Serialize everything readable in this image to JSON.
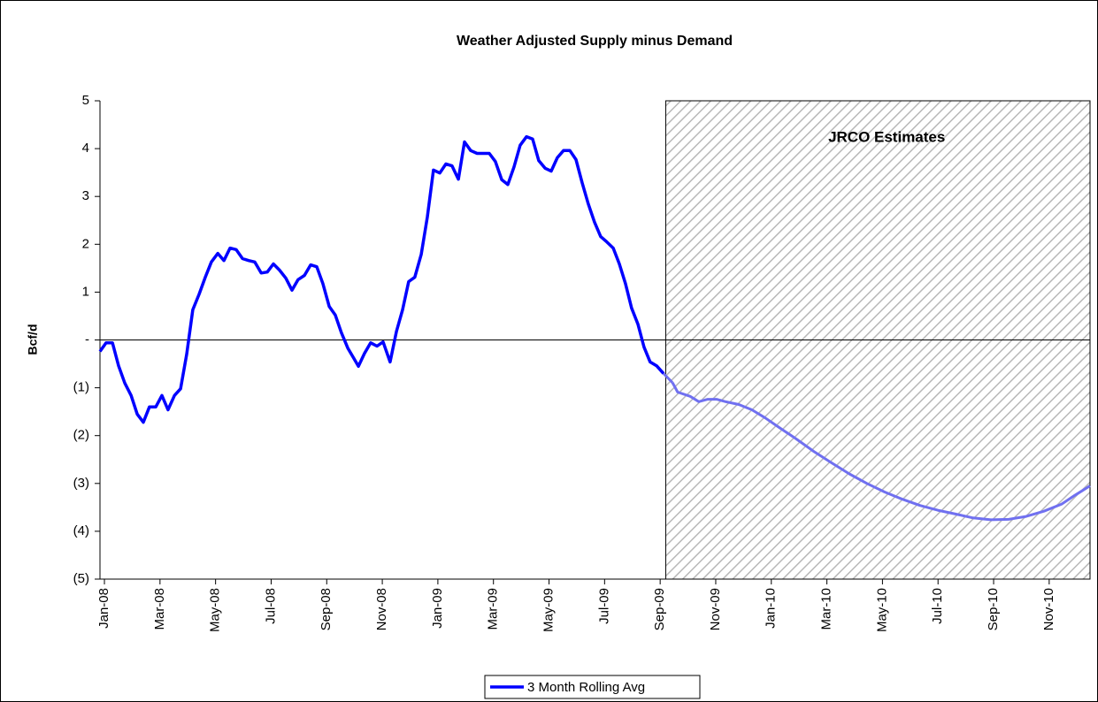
{
  "chart_data": {
    "type": "line",
    "title": "Weather Adjusted Supply minus Demand",
    "ylabel": "Bcf/d",
    "annotation": "JRCO Estimates",
    "estimate_from": 20.2,
    "estimate_color": "#7070f0",
    "shade_color": "#b8b8b8",
    "legend": "bottom",
    "x": [
      -0.16,
      0.06,
      0.29,
      0.51,
      0.73,
      0.96,
      1.18,
      1.4,
      1.62,
      1.85,
      2.07,
      2.29,
      2.52,
      2.74,
      2.96,
      3.18,
      3.41,
      3.63,
      3.85,
      4.08,
      4.3,
      4.52,
      4.74,
      4.97,
      5.19,
      5.41,
      5.64,
      5.86,
      6.08,
      6.3,
      6.53,
      6.75,
      6.97,
      7.2,
      7.42,
      7.64,
      7.86,
      8.09,
      8.31,
      8.53,
      8.76,
      8.98,
      9.14,
      9.36,
      9.58,
      9.81,
      10.03,
      10.28,
      10.51,
      10.73,
      10.95,
      11.17,
      11.4,
      11.62,
      11.84,
      12.07,
      12.29,
      12.51,
      12.74,
      12.96,
      13.18,
      13.41,
      13.63,
      13.85,
      14.07,
      14.3,
      14.52,
      14.74,
      14.96,
      15.19,
      15.41,
      15.63,
      15.86,
      16.08,
      16.3,
      16.52,
      16.75,
      16.97,
      17.19,
      17.41,
      17.64,
      17.86,
      18.08,
      18.31,
      18.53,
      18.75,
      18.97,
      19.2,
      19.42,
      19.64,
      19.87,
      20.12,
      20.44,
      20.63,
      21.08,
      21.39,
      21.71,
      22.03,
      22.35,
      22.83,
      23.3,
      23.78,
      24.26,
      24.9,
      25.53,
      26.17,
      26.81,
      27.44,
      28.08,
      28.72,
      29.35,
      29.99,
      30.63,
      31.26,
      31.9,
      32.54,
      33.17,
      33.81,
      34.45,
      34.92,
      35.47
    ],
    "series": [
      {
        "name": "3 Month Rolling Avg",
        "color": "#0000ff",
        "values": [
          -0.24,
          -0.06,
          -0.06,
          -0.54,
          -0.9,
          -1.16,
          -1.55,
          -1.72,
          -1.4,
          -1.4,
          -1.16,
          -1.46,
          -1.16,
          -1.02,
          -0.3,
          0.63,
          0.96,
          1.31,
          1.63,
          1.81,
          1.66,
          1.92,
          1.89,
          1.7,
          1.66,
          1.63,
          1.4,
          1.42,
          1.59,
          1.46,
          1.29,
          1.04,
          1.26,
          1.35,
          1.57,
          1.53,
          1.18,
          0.7,
          0.52,
          0.15,
          -0.17,
          -0.39,
          -0.55,
          -0.28,
          -0.06,
          -0.13,
          -0.04,
          -0.46,
          0.18,
          0.63,
          1.22,
          1.31,
          1.79,
          2.57,
          3.55,
          3.49,
          3.68,
          3.64,
          3.36,
          4.14,
          3.96,
          3.9,
          3.9,
          3.9,
          3.73,
          3.35,
          3.25,
          3.62,
          4.07,
          4.25,
          4.2,
          3.75,
          3.59,
          3.53,
          3.81,
          3.96,
          3.96,
          3.77,
          3.29,
          2.85,
          2.46,
          2.16,
          2.05,
          1.92,
          1.59,
          1.18,
          0.67,
          0.33,
          -0.15,
          -0.46,
          -0.54,
          -0.7,
          -0.89,
          -1.09,
          -1.18,
          -1.29,
          -1.24,
          -1.24,
          -1.29,
          -1.35,
          -1.46,
          -1.63,
          -1.82,
          -2.07,
          -2.33,
          -2.57,
          -2.8,
          -3.0,
          -3.18,
          -3.33,
          -3.46,
          -3.56,
          -3.64,
          -3.72,
          -3.76,
          -3.75,
          -3.69,
          -3.58,
          -3.43,
          -3.25,
          -3.05
        ]
      }
    ],
    "xlim": [
      -0.16,
      35.47
    ],
    "xticks": [
      {
        "value": 0,
        "label": "Jan-08"
      },
      {
        "value": 2,
        "label": "Mar-08"
      },
      {
        "value": 4,
        "label": "May-08"
      },
      {
        "value": 6,
        "label": "Jul-08"
      },
      {
        "value": 8,
        "label": "Sep-08"
      },
      {
        "value": 10,
        "label": "Nov-08"
      },
      {
        "value": 12,
        "label": "Jan-09"
      },
      {
        "value": 14,
        "label": "Mar-09"
      },
      {
        "value": 16,
        "label": "May-09"
      },
      {
        "value": 18,
        "label": "Jul-09"
      },
      {
        "value": 20,
        "label": "Sep-09"
      },
      {
        "value": 22,
        "label": "Nov-09"
      },
      {
        "value": 24,
        "label": "Jan-10"
      },
      {
        "value": 26,
        "label": "Mar-10"
      },
      {
        "value": 28,
        "label": "May-10"
      },
      {
        "value": 30,
        "label": "Jul-10"
      },
      {
        "value": 32,
        "label": "Sep-10"
      },
      {
        "value": 34,
        "label": "Nov-10"
      }
    ],
    "ylim": [
      -5,
      5
    ],
    "yticks": [
      5,
      4,
      3,
      2,
      1,
      {
        "value": 0,
        "label": "-"
      },
      {
        "value": -1,
        "label": "(1)"
      },
      {
        "value": -2,
        "label": "(2)"
      },
      {
        "value": -3,
        "label": "(3)"
      },
      {
        "value": -4,
        "label": "(4)"
      },
      {
        "value": -5,
        "label": "(5)"
      }
    ]
  }
}
